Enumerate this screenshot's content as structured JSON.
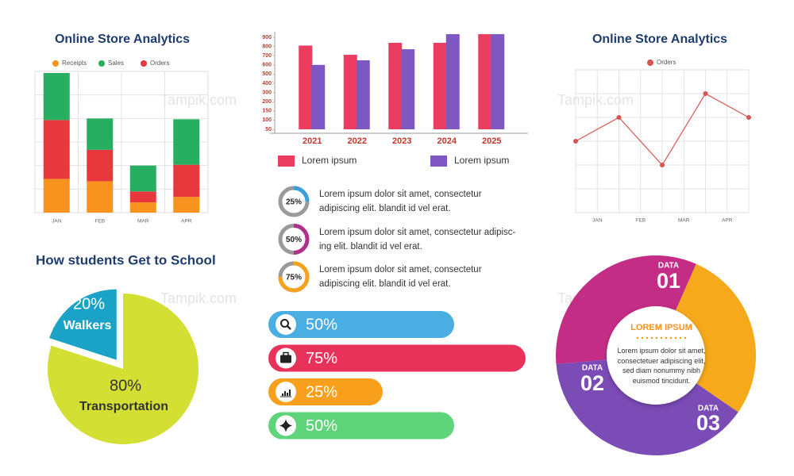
{
  "watermark": "Tampik.com",
  "chart_data": [
    {
      "type": "stacked_bar",
      "title": "Online Store Analytics",
      "categories": [
        "JAN",
        "FEB",
        "MAR",
        "APR"
      ],
      "series": [
        {
          "name": "Receipts",
          "color": "#f7931e",
          "values": [
            43,
            40,
            13,
            20
          ]
        },
        {
          "name": "Sales",
          "color": "#27ae60",
          "values": [
            60,
            40,
            33,
            58
          ]
        },
        {
          "name": "Orders",
          "color": "#e8383d",
          "values": [
            75,
            40,
            14,
            41
          ]
        }
      ],
      "ylim": [
        0,
        180
      ]
    },
    {
      "type": "bar",
      "categories": [
        "2021",
        "2022",
        "2023",
        "2024",
        "2025"
      ],
      "series": [
        {
          "name": "Lorem ipsum",
          "color": "#ea3d5f",
          "values": [
            810,
            710,
            840,
            840,
            934
          ]
        },
        {
          "name": "Lorem ipsum",
          "color": "#7e57c2",
          "values": [
            600,
            650,
            770,
            934,
            934
          ]
        }
      ],
      "ylim": [
        50,
        950
      ],
      "yticks": [
        900,
        800,
        700,
        600,
        500,
        400,
        300,
        200,
        150,
        100,
        50
      ]
    },
    {
      "type": "line",
      "title": "Online Store Analytics",
      "x": [
        0,
        1,
        2,
        3,
        4
      ],
      "xlim": [
        0,
        4
      ],
      "xticks": [
        {
          "value": 0.5,
          "label": "JAN"
        },
        {
          "value": 1.5,
          "label": "FEB"
        },
        {
          "value": 2.5,
          "label": "MAR"
        },
        {
          "value": 3.5,
          "label": "APR"
        }
      ],
      "series": [
        {
          "name": "Orders",
          "color": "#d9534f",
          "values": [
            3,
            4,
            2,
            5,
            4
          ]
        }
      ],
      "ylim": [
        0,
        6
      ]
    },
    {
      "type": "pie",
      "title": "How students Get to School",
      "categories": [
        "Walkers",
        "Transportation"
      ],
      "values": [
        20,
        80
      ],
      "value_labels": [
        "20%",
        "80%"
      ],
      "colors": [
        "#1aa3c6",
        "#d3e033"
      ]
    },
    {
      "type": "progress_ring",
      "values": [
        25,
        50,
        75
      ],
      "value_labels": [
        "25%",
        "50%",
        "75%"
      ],
      "colors": [
        "#3aa0dc",
        "#b0308a",
        "#f7a21b"
      ],
      "texts": [
        "Lorem ipsum dolor sit amet, consectetur adipiscing elit. blandit id vel erat.",
        "Lorem ipsum dolor sit amet, consectetur adipisc-ing elit. blandit id vel erat.",
        "Lorem ipsum dolor sit amet, consectetur adipiscing elit. blandit id vel erat."
      ]
    },
    {
      "type": "progress_bar",
      "values": [
        50,
        75,
        25,
        50
      ],
      "value_labels": [
        "50%",
        "75%",
        "25%",
        "50%"
      ],
      "colors": [
        "#4aaee2",
        "#e8325a",
        "#f8a01c",
        "#5fd47a"
      ]
    },
    {
      "type": "donut",
      "categories": [
        {
          "label": "DATA",
          "number": "01"
        },
        {
          "label": "DATA",
          "number": "02"
        },
        {
          "label": "DATA",
          "number": "03"
        }
      ],
      "values": [
        33,
        28,
        39
      ],
      "colors": [
        "#c42d86",
        "#f6a91b",
        "#7b4bb6"
      ],
      "center_title": "LOREM IPSUM",
      "center_text": "Lorem ipsum dolor sit amet, consectetuer adipiscing elit, sed diam nonummy nibh euismod tincidunt."
    }
  ]
}
